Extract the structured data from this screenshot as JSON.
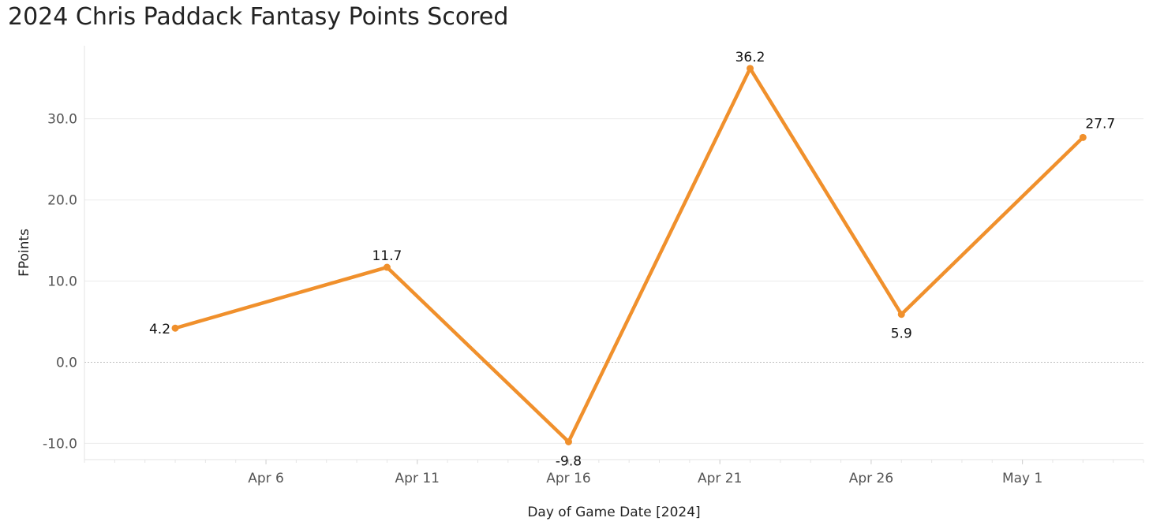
{
  "chart_data": {
    "type": "line",
    "title": "2024 Chris Paddack Fantasy Points Scored",
    "xlabel": "Day of Game Date [2024]",
    "ylabel": "FPoints",
    "x_ticks": [
      {
        "date": "2024-04-06",
        "label": "Apr 6"
      },
      {
        "date": "2024-04-11",
        "label": "Apr 11"
      },
      {
        "date": "2024-04-16",
        "label": "Apr 16"
      },
      {
        "date": "2024-04-21",
        "label": "Apr 21"
      },
      {
        "date": "2024-04-26",
        "label": "Apr 26"
      },
      {
        "date": "2024-05-01",
        "label": "May 1"
      }
    ],
    "y_ticks": [
      {
        "value": -10,
        "label": "-10.0"
      },
      {
        "value": 0,
        "label": "0.0"
      },
      {
        "value": 10,
        "label": "10.0"
      },
      {
        "value": 20,
        "label": "20.0"
      },
      {
        "value": 30,
        "label": "30.0"
      }
    ],
    "series": [
      {
        "points": [
          {
            "x": "2024-04-03",
            "y": 4.2,
            "label": "4.2"
          },
          {
            "x": "2024-04-10",
            "y": 11.7,
            "label": "11.7"
          },
          {
            "x": "2024-04-16",
            "y": -9.8,
            "label": "-9.8"
          },
          {
            "x": "2024-04-22",
            "y": 36.2,
            "label": "36.2"
          },
          {
            "x": "2024-04-27",
            "y": 5.9,
            "label": "5.9"
          },
          {
            "x": "2024-05-03",
            "y": 27.7,
            "label": "27.7"
          }
        ]
      }
    ],
    "xlim": [
      "2024-03-31",
      "2024-05-05"
    ],
    "ylim": [
      -12,
      39
    ],
    "grid": true,
    "line_color": "#F0902C",
    "gridline_color": "#EBEBEB",
    "zero_line_color": "#BDBDBD"
  }
}
